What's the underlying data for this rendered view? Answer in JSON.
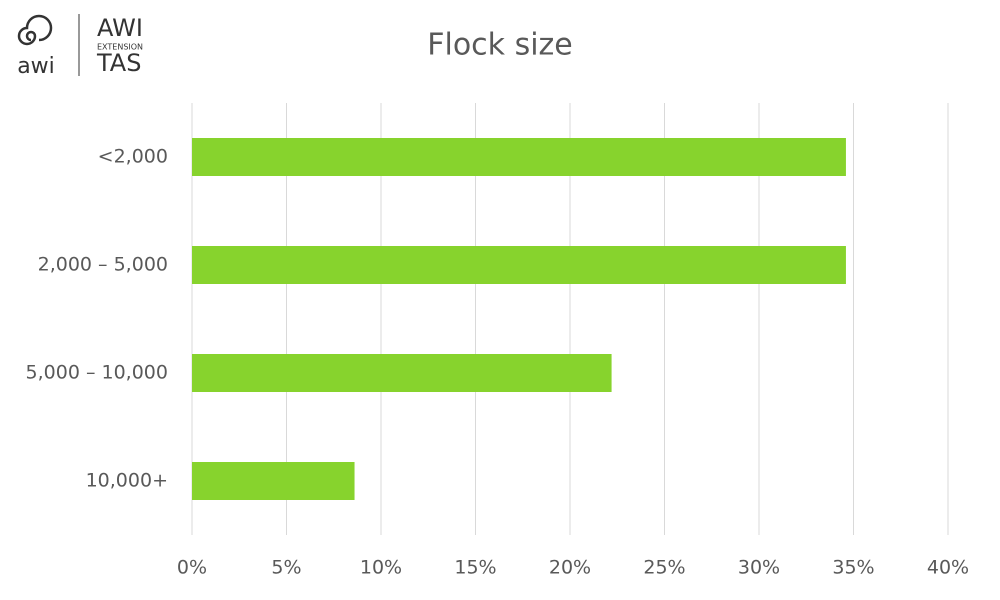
{
  "logo": {
    "mark": "awi",
    "name": "AWI",
    "tag": "EXTENSION",
    "region": "TAS"
  },
  "chart_data": {
    "type": "bar",
    "orientation": "horizontal",
    "title": "Flock size",
    "categories": [
      "<2,000",
      "2,000 – 5,000",
      "5,000 – 10,000",
      "10,000+"
    ],
    "values": [
      34.6,
      34.6,
      22.2,
      8.6
    ],
    "color": "#87d32d",
    "xlim": [
      0,
      40
    ],
    "xticks": [
      {
        "value": 0,
        "label": "0%"
      },
      {
        "value": 5,
        "label": "5%"
      },
      {
        "value": 10,
        "label": "10%"
      },
      {
        "value": 15,
        "label": "15%"
      },
      {
        "value": 20,
        "label": "20%"
      },
      {
        "value": 25,
        "label": "25%"
      },
      {
        "value": 30,
        "label": "30%"
      },
      {
        "value": 35,
        "label": "35%"
      },
      {
        "value": 40,
        "label": "40%"
      }
    ],
    "grid": true
  }
}
